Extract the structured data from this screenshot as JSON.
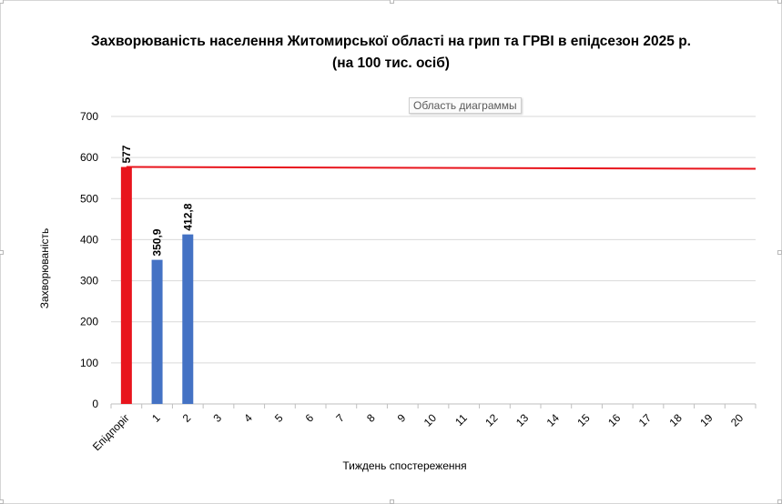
{
  "chart_data": {
    "type": "bar",
    "title_line1": "Захворюваність населення Житомирської області на грип та ГРВІ в епідсезон 2025 р.",
    "title_line2": "(на 100 тис. осіб)",
    "xlabel": "Тиждень спостереження",
    "ylabel": "Захворюваність",
    "ylim": [
      0,
      700
    ],
    "yticks": [
      0,
      100,
      200,
      300,
      400,
      500,
      600,
      700
    ],
    "grid": true,
    "categories": [
      "Епідпоріг",
      "1",
      "2",
      "3",
      "4",
      "5",
      "6",
      "7",
      "8",
      "9",
      "10",
      "11",
      "12",
      "13",
      "14",
      "15",
      "16",
      "17",
      "18",
      "19",
      "20"
    ],
    "series": [
      {
        "values": [
          577,
          350.9,
          412.8,
          null,
          null,
          null,
          null,
          null,
          null,
          null,
          null,
          null,
          null,
          null,
          null,
          null,
          null,
          null,
          null,
          null,
          null
        ],
        "data_labels": [
          "577",
          "350,9",
          "412,8"
        ],
        "colors": [
          "#e8141c",
          "#4472c4",
          "#4472c4"
        ]
      }
    ],
    "threshold_line": {
      "value": 577,
      "color": "#e8141c"
    }
  },
  "tooltip": "Область диаграммы"
}
